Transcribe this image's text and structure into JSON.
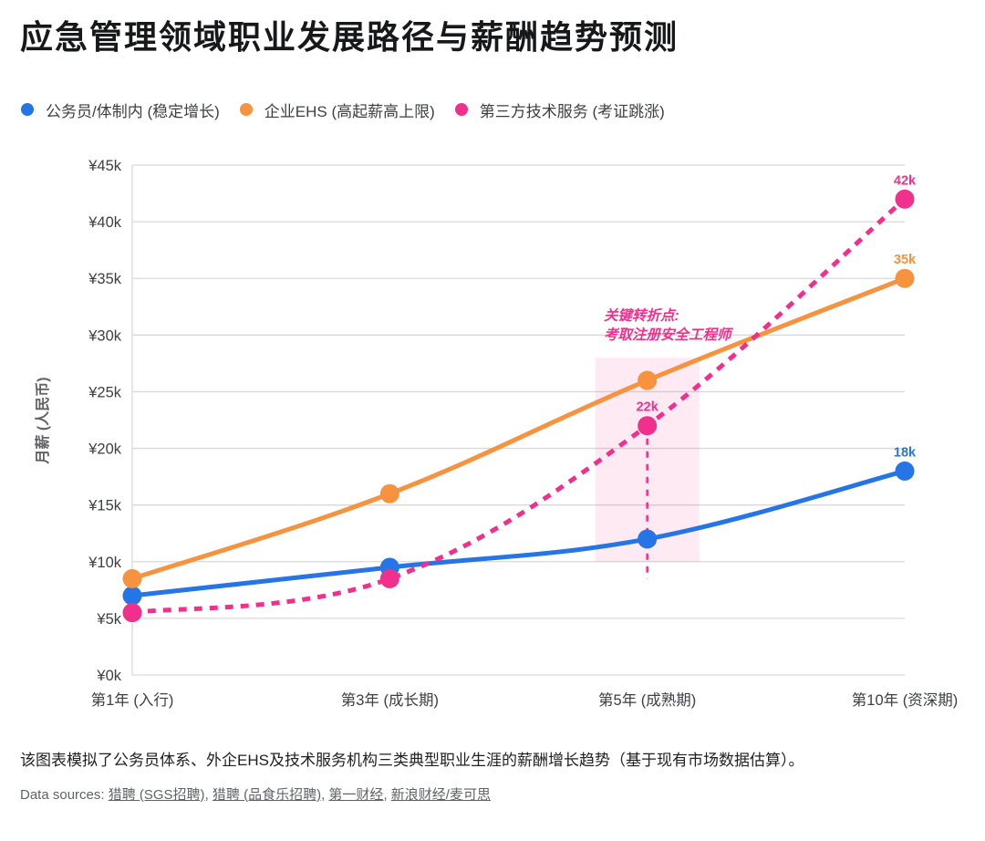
{
  "title": "应急管理领域职业发展路径与薪酬趋势预测",
  "legend": [
    {
      "label": "公务员/体制内 (稳定增长)",
      "color": "#2575e6"
    },
    {
      "label": "企业EHS (高起薪高上限)",
      "color": "#f7923f"
    },
    {
      "label": "第三方技术服务 (考证跳涨)",
      "color": "#f0308c"
    }
  ],
  "chart_data": {
    "type": "line",
    "categories": [
      "第1年 (入行)",
      "第3年 (成长期)",
      "第5年 (成熟期)",
      "第10年 (资深期)"
    ],
    "series": [
      {
        "name": "公务员/体制内 (稳定增长)",
        "values": [
          7000,
          9500,
          12000,
          18000
        ],
        "color": "#2575e6",
        "style": "solid",
        "point_labels": [
          null,
          null,
          null,
          "18k"
        ]
      },
      {
        "name": "企业EHS (高起薪高上限)",
        "values": [
          8500,
          16000,
          26000,
          35000
        ],
        "color": "#f7923f",
        "style": "solid",
        "point_labels": [
          null,
          null,
          null,
          "35k"
        ]
      },
      {
        "name": "第三方技术服务 (考证跳涨)",
        "values": [
          5500,
          8500,
          22000,
          42000
        ],
        "color": "#f0308c",
        "style": "dashed",
        "point_labels": [
          null,
          null,
          "22k",
          "42k"
        ]
      }
    ],
    "ylabel": "月薪 (人民币)",
    "ylim": [
      0,
      45000
    ],
    "ytick_step": 5000,
    "yticks": [
      "¥45k",
      "¥40k",
      "¥35k",
      "¥30k",
      "¥25k",
      "¥20k",
      "¥15k",
      "¥10k",
      "¥5k",
      "¥0k"
    ],
    "grid": true,
    "legend_position": "top",
    "annotation": {
      "lines": [
        "关键转折点:",
        "考取注册安全工程师"
      ],
      "color": "#f0308c"
    },
    "highlight_band": {
      "category_index": 2,
      "y_from": 10000,
      "y_to": 28000,
      "color": "rgba(240,48,140,0.10)"
    },
    "drop_line": {
      "category_index": 2,
      "from_value": 22000,
      "color": "#f0308c"
    },
    "axis_color": "#d7d9dc",
    "tick_label_color": "#3c4043",
    "ylabel_color": "#5f6368"
  },
  "footer": {
    "description": "该图表模拟了公务员体系、外企EHS及技术服务机构三类典型职业生涯的薪酬增长趋势（基于现有市场数据估算）。",
    "sources_prefix": "Data sources: ",
    "sources": [
      "猎聘 (SGS招聘)",
      "猎聘 (品食乐招聘)",
      "第一财经",
      "新浪财经/麦可思"
    ],
    "sources_separator": ", "
  }
}
